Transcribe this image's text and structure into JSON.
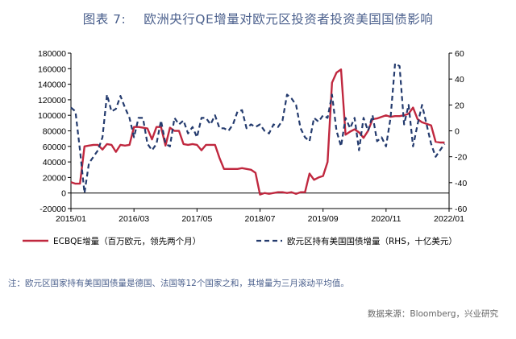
{
  "figure": {
    "number": "图表 7:",
    "title": "欧洲央行QE增量对欧元区投资者投资美国国债影响",
    "note": "注：欧元区国家持有美国国债量是德国、法国等12个国家之和，其增量为三月滚动平均值。",
    "source": "数据来源：Bloomberg，兴业研究"
  },
  "chart_data": {
    "type": "line",
    "x_ticks": [
      "2015/01",
      "2016/03",
      "2017/05",
      "2018/07",
      "2019/09",
      "2020/11",
      "2022/01"
    ],
    "x_range": [
      "2015/01",
      "2022/01"
    ],
    "y_left": {
      "min": -20000,
      "max": 180000,
      "ticks": [
        -20000,
        0,
        20000,
        40000,
        60000,
        80000,
        100000,
        120000,
        140000,
        160000,
        180000
      ]
    },
    "y_right": {
      "min": -60,
      "max": 60,
      "ticks": [
        -60,
        -40,
        -20,
        0,
        20,
        40,
        60
      ]
    },
    "legend_position": "bottom",
    "series": [
      {
        "name": "ECBQE增量（百万欧元，领先两个月）",
        "axis": "left",
        "color": "#c0283f",
        "style": "solid",
        "x": [
          "2015/01",
          "2015/02",
          "2015/03",
          "2015/04",
          "2015/05",
          "2015/06",
          "2015/07",
          "2015/08",
          "2015/09",
          "2015/10",
          "2015/11",
          "2015/12",
          "2016/01",
          "2016/02",
          "2016/03",
          "2016/04",
          "2016/05",
          "2016/06",
          "2016/07",
          "2016/08",
          "2016/09",
          "2016/10",
          "2016/11",
          "2016/12",
          "2017/01",
          "2017/02",
          "2017/03",
          "2017/04",
          "2017/05",
          "2017/06",
          "2017/07",
          "2017/08",
          "2017/09",
          "2017/10",
          "2017/11",
          "2017/12",
          "2018/01",
          "2018/02",
          "2018/03",
          "2018/04",
          "2018/05",
          "2018/06",
          "2018/07",
          "2018/08",
          "2018/09",
          "2018/10",
          "2018/11",
          "2018/12",
          "2019/01",
          "2019/02",
          "2019/03",
          "2019/04",
          "2019/05",
          "2019/06",
          "2019/07",
          "2019/08",
          "2019/09",
          "2019/10",
          "2019/11",
          "2019/12",
          "2020/01",
          "2020/02",
          "2020/03",
          "2020/04",
          "2020/05",
          "2020/06",
          "2020/07",
          "2020/08",
          "2020/09",
          "2020/10",
          "2020/11",
          "2020/12",
          "2021/01",
          "2021/02",
          "2021/03",
          "2021/04",
          "2021/05",
          "2021/06",
          "2021/07",
          "2021/08",
          "2021/09",
          "2021/10",
          "2021/11",
          "2021/12"
        ],
        "values": [
          14000,
          12000,
          12000,
          60000,
          61000,
          62000,
          62000,
          56000,
          63000,
          62000,
          53000,
          62000,
          61000,
          62000,
          85000,
          85000,
          84000,
          83000,
          69000,
          85000,
          85000,
          61000,
          84000,
          80000,
          80000,
          63000,
          62000,
          63000,
          62000,
          55000,
          62000,
          62000,
          62000,
          45000,
          31000,
          31000,
          31000,
          31000,
          32000,
          31000,
          30000,
          26000,
          -2000,
          0,
          -1000,
          0,
          1000,
          1000,
          0,
          1000,
          -1000,
          1000,
          1000,
          25000,
          17000,
          20000,
          22000,
          40000,
          142000,
          155000,
          159000,
          75000,
          79000,
          82000,
          78000,
          71000,
          80000,
          95000,
          96000,
          98000,
          100000,
          98000,
          99000,
          99000,
          100000,
          102000,
          110000,
          95000,
          91000,
          89000,
          87000,
          66000,
          65000,
          65000
        ]
      },
      {
        "name": "欧元区持有美国国债增量（RHS，十亿美元）",
        "axis": "right",
        "color": "#243b6e",
        "style": "dashed",
        "x": [
          "2015/01",
          "2015/02",
          "2015/03",
          "2015/04",
          "2015/05",
          "2015/06",
          "2015/07",
          "2015/08",
          "2015/09",
          "2015/10",
          "2015/11",
          "2015/12",
          "2016/01",
          "2016/02",
          "2016/03",
          "2016/04",
          "2016/05",
          "2016/06",
          "2016/07",
          "2016/08",
          "2016/09",
          "2016/10",
          "2016/11",
          "2016/12",
          "2017/01",
          "2017/02",
          "2017/03",
          "2017/04",
          "2017/05",
          "2017/06",
          "2017/07",
          "2017/08",
          "2017/09",
          "2017/10",
          "2017/11",
          "2017/12",
          "2018/01",
          "2018/02",
          "2018/03",
          "2018/04",
          "2018/05",
          "2018/06",
          "2018/07",
          "2018/08",
          "2018/09",
          "2018/10",
          "2018/11",
          "2018/12",
          "2019/01",
          "2019/02",
          "2019/03",
          "2019/04",
          "2019/05",
          "2019/06",
          "2019/07",
          "2019/08",
          "2019/09",
          "2019/10",
          "2019/11",
          "2019/12",
          "2020/01",
          "2020/02",
          "2020/03",
          "2020/04",
          "2020/05",
          "2020/06",
          "2020/07",
          "2020/08",
          "2020/09",
          "2020/10",
          "2020/11",
          "2020/12",
          "2021/01",
          "2021/02",
          "2021/03",
          "2021/04",
          "2021/05",
          "2021/06",
          "2021/07",
          "2021/08",
          "2021/09",
          "2021/10",
          "2021/11",
          "2021/12"
        ],
        "values": [
          18,
          15,
          -15,
          -48,
          -25,
          -20,
          -15,
          -5,
          28,
          15,
          17,
          27,
          18,
          10,
          -5,
          10,
          10,
          -10,
          -15,
          -10,
          8,
          -10,
          -12,
          10,
          5,
          8,
          -2,
          3,
          -5,
          10,
          10,
          5,
          12,
          2,
          2,
          0,
          5,
          15,
          16,
          2,
          5,
          3,
          5,
          0,
          -2,
          5,
          3,
          8,
          28,
          25,
          20,
          2,
          -5,
          -8,
          10,
          7,
          12,
          10,
          28,
          0,
          -12,
          10,
          2,
          10,
          -15,
          10,
          0,
          12,
          -8,
          -5,
          -12,
          10,
          52,
          50,
          5,
          20,
          -12,
          5,
          20,
          5,
          -10,
          -20,
          -15,
          -10
        ]
      }
    ]
  }
}
